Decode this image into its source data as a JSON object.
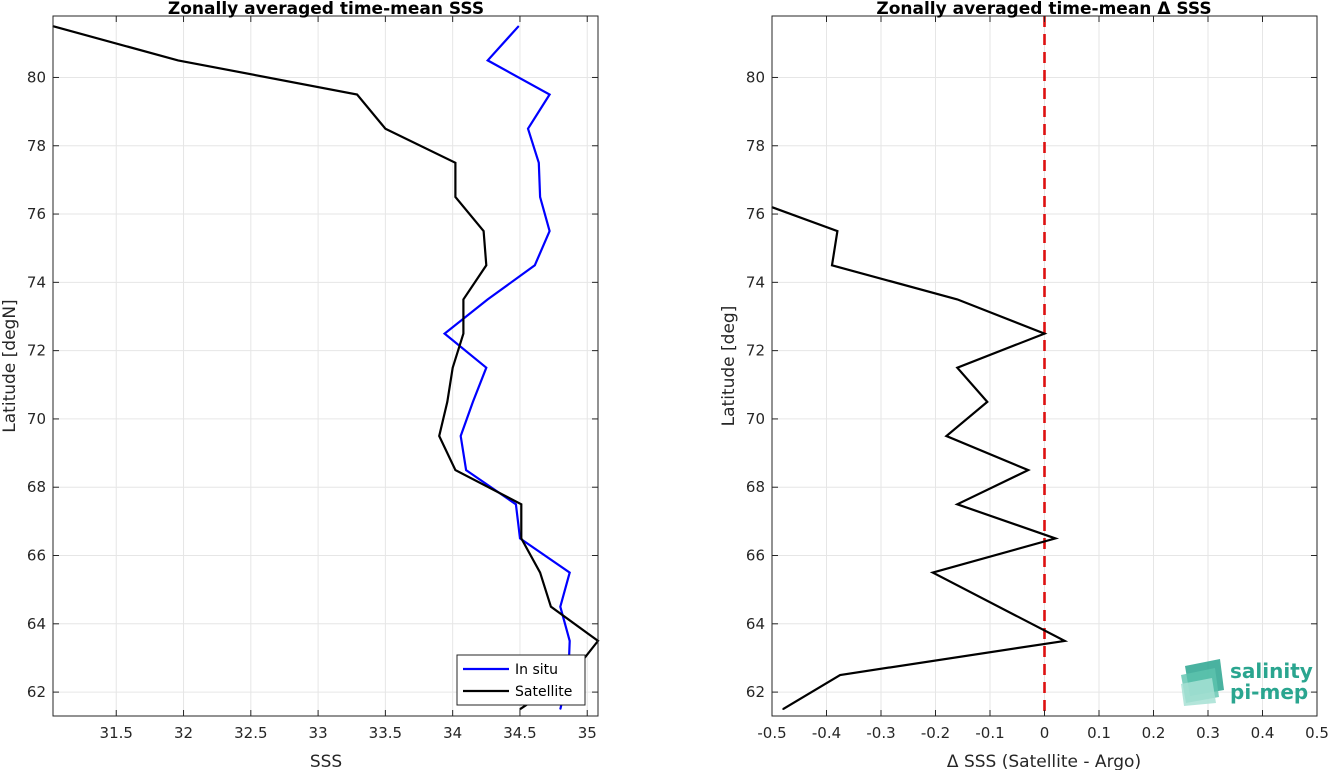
{
  "charts": [
    {
      "title": "Zonally averaged time-mean SSS",
      "xlabel": "SSS",
      "ylabel": "Latitude [degN]",
      "xticks": [
        "31.5",
        "32",
        "32.5",
        "33",
        "33.5",
        "34",
        "34.5",
        "35"
      ],
      "yticks": [
        "62",
        "64",
        "66",
        "68",
        "70",
        "72",
        "74",
        "76",
        "78",
        "80"
      ],
      "legend": {
        "items": [
          "In situ",
          "Satellite"
        ]
      }
    },
    {
      "title": "Zonally averaged time-mean Δ SSS",
      "xlabel": "Δ SSS (Satellite - Argo)",
      "ylabel": "Latitude [deg]",
      "xticks": [
        "-0.5",
        "-0.4",
        "-0.3",
        "-0.2",
        "-0.1",
        "0",
        "0.1",
        "0.2",
        "0.3",
        "0.4",
        "0.5"
      ],
      "yticks": [
        "62",
        "64",
        "66",
        "68",
        "70",
        "72",
        "74",
        "76",
        "78",
        "80"
      ]
    }
  ],
  "logo": {
    "line1": "salinity",
    "line2": "pi-mep"
  },
  "colors": {
    "in_situ": "#0000ff",
    "satellite": "#000000",
    "zero_line": "#dd1111",
    "grid": "#e6e6e6",
    "logo": "#2aa58f"
  },
  "chart_data": [
    {
      "type": "line",
      "title": "Zonally averaged time-mean SSS",
      "xlabel": "SSS",
      "ylabel": "Latitude [degN]",
      "xlim": [
        31.03,
        35.08
      ],
      "ylim": [
        61.3,
        81.8
      ],
      "grid": true,
      "legend_position": "bottom-right",
      "series": [
        {
          "name": "In situ",
          "color": "#0000ff",
          "points": [
            [
              34.49,
              81.5
            ],
            [
              34.26,
              80.5
            ],
            [
              34.72,
              79.5
            ],
            [
              34.56,
              78.5
            ],
            [
              34.64,
              77.5
            ],
            [
              34.65,
              76.5
            ],
            [
              34.72,
              75.5
            ],
            [
              34.61,
              74.5
            ],
            [
              34.26,
              73.5
            ],
            [
              33.94,
              72.5
            ],
            [
              34.25,
              71.5
            ],
            [
              34.15,
              70.5
            ],
            [
              34.06,
              69.5
            ],
            [
              34.1,
              68.5
            ],
            [
              34.47,
              67.5
            ],
            [
              34.5,
              66.5
            ],
            [
              34.87,
              65.5
            ],
            [
              34.8,
              64.5
            ],
            [
              34.87,
              63.5
            ],
            [
              34.86,
              62.5
            ],
            [
              34.8,
              61.5
            ]
          ]
        },
        {
          "name": "Satellite",
          "color": "#000000",
          "points": [
            [
              31.03,
              81.5
            ],
            [
              31.96,
              80.5
            ],
            [
              33.29,
              79.5
            ],
            [
              33.5,
              78.5
            ],
            [
              34.02,
              77.5
            ],
            [
              34.02,
              76.5
            ],
            [
              34.23,
              75.5
            ],
            [
              34.25,
              74.5
            ],
            [
              34.08,
              73.5
            ],
            [
              34.08,
              72.5
            ],
            [
              34.0,
              71.5
            ],
            [
              33.96,
              70.5
            ],
            [
              33.9,
              69.5
            ],
            [
              34.02,
              68.5
            ],
            [
              34.51,
              67.5
            ],
            [
              34.51,
              66.5
            ],
            [
              34.65,
              65.5
            ],
            [
              34.73,
              64.5
            ],
            [
              35.08,
              63.5
            ],
            [
              34.88,
              62.5
            ],
            [
              34.5,
              61.5
            ]
          ]
        }
      ]
    },
    {
      "type": "line",
      "title": "Zonally averaged time-mean Δ SSS",
      "xlabel": "Δ SSS (Satellite - Argo)",
      "ylabel": "Latitude [deg]",
      "xlim": [
        -0.5,
        0.5
      ],
      "ylim": [
        61.3,
        81.8
      ],
      "grid": true,
      "reference_line": {
        "x": 0,
        "color": "#dd1111",
        "style": "dashed"
      },
      "series": [
        {
          "color": "#000000",
          "points": [
            [
              -0.5,
              76.2
            ],
            [
              -0.38,
              75.5
            ],
            [
              -0.39,
              74.5
            ],
            [
              -0.16,
              73.5
            ],
            [
              0.0,
              72.5
            ],
            [
              -0.16,
              71.5
            ],
            [
              -0.105,
              70.5
            ],
            [
              -0.18,
              69.5
            ],
            [
              -0.03,
              68.5
            ],
            [
              -0.16,
              67.5
            ],
            [
              0.02,
              66.5
            ],
            [
              -0.205,
              65.5
            ],
            [
              0.037,
              63.5
            ],
            [
              -0.375,
              62.5
            ],
            [
              -0.48,
              61.5
            ]
          ]
        }
      ]
    }
  ]
}
